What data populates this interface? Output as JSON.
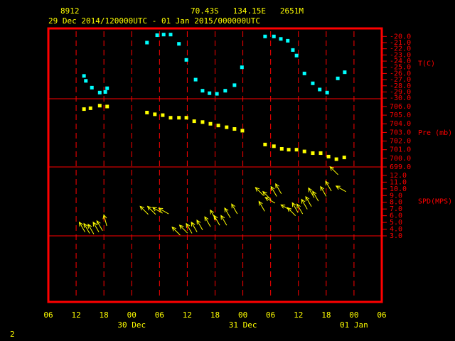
{
  "header": {
    "station": "8912",
    "location": "70.43S   134.15E   2651M",
    "period": "29 Dec 2014/120000UTC - 01 Jan 2015/000000UTC"
  },
  "page_number": "2",
  "x_axis": {
    "xlim": [
      0,
      72
    ],
    "xticks": [
      {
        "value": 0,
        "label": "06"
      },
      {
        "value": 6,
        "label": "12"
      },
      {
        "value": 12,
        "label": "18"
      },
      {
        "value": 18,
        "label": "00"
      },
      {
        "value": 24,
        "label": "06"
      },
      {
        "value": 30,
        "label": "12"
      },
      {
        "value": 36,
        "label": "18"
      },
      {
        "value": 42,
        "label": "00"
      },
      {
        "value": 48,
        "label": "06"
      },
      {
        "value": 54,
        "label": "12"
      },
      {
        "value": 60,
        "label": "18"
      },
      {
        "value": 66,
        "label": "00"
      },
      {
        "value": 72,
        "label": "06"
      }
    ],
    "date_labels": [
      {
        "value": 18,
        "label": "30 Dec"
      },
      {
        "value": 42,
        "label": "31 Dec"
      },
      {
        "value": 66,
        "label": "01 Jan"
      }
    ]
  },
  "chart_data": [
    {
      "type": "scatter",
      "axis_label": "T(C)",
      "color": "#00ffff",
      "ylim": [
        -30.1,
        -18.7
      ],
      "yticks": [
        {
          "value": -20,
          "label": "-20.0"
        },
        {
          "value": -21,
          "label": "-21.0"
        },
        {
          "value": -22,
          "label": "-22.0"
        },
        {
          "value": -23,
          "label": "-23.0"
        },
        {
          "value": -24,
          "label": "-24.0"
        },
        {
          "value": -25,
          "label": "-25.0"
        },
        {
          "value": -26,
          "label": "-26.0"
        },
        {
          "value": -27,
          "label": "-27.0"
        },
        {
          "value": -28,
          "label": "-28.0"
        },
        {
          "value": -29,
          "label": "-29.0"
        },
        {
          "value": -30,
          "label": "-30.0"
        }
      ],
      "x": [
        7.7,
        8.1,
        9.4,
        11.1,
        12.3,
        12.7,
        21.3,
        23.5,
        24.9,
        26.4,
        28.2,
        29.8,
        31.8,
        33.3,
        34.8,
        36.4,
        38.2,
        40.2,
        41.8,
        46.8,
        48.7,
        50.2,
        51.7,
        52.8,
        53.6,
        55.3,
        57.1,
        58.6,
        60.2,
        62.5,
        64.0
      ],
      "values": [
        -26.4,
        -27.2,
        -28.3,
        -29.1,
        -29.0,
        -28.4,
        -21.0,
        -19.8,
        -19.7,
        -19.7,
        -21.2,
        -23.8,
        -27.0,
        -28.8,
        -29.2,
        -29.3,
        -28.8,
        -27.9,
        -25.0,
        -20.0,
        -20.0,
        -20.4,
        -20.7,
        -22.2,
        -23.1,
        -26.0,
        -27.6,
        -28.6,
        -29.1,
        -26.8,
        -25.8
      ]
    },
    {
      "type": "scatter",
      "axis_label": "Pre (mb)",
      "color": "#ffff00",
      "ylim": [
        699,
        706.9
      ],
      "yticks": [
        {
          "value": 699,
          "label": "699.0"
        },
        {
          "value": 700,
          "label": "700.0"
        },
        {
          "value": 701,
          "label": "701.0"
        },
        {
          "value": 702,
          "label": "702.0"
        },
        {
          "value": 703,
          "label": "703.0"
        },
        {
          "value": 704,
          "label": "704.0"
        },
        {
          "value": 705,
          "label": "705.0"
        },
        {
          "value": 706,
          "label": "706.0"
        }
      ],
      "x": [
        7.7,
        9.1,
        11.1,
        12.7,
        21.3,
        23.0,
        24.7,
        26.4,
        28.2,
        29.8,
        31.5,
        33.3,
        35.0,
        36.7,
        38.5,
        40.2,
        41.9,
        46.8,
        48.7,
        50.4,
        51.9,
        53.6,
        55.3,
        57.1,
        58.8,
        60.5,
        62.2,
        63.9
      ],
      "values": [
        705.7,
        705.8,
        706.1,
        706.0,
        705.3,
        705.1,
        705.0,
        704.7,
        704.7,
        704.7,
        704.3,
        704.2,
        704.0,
        703.8,
        703.6,
        703.4,
        703.2,
        701.6,
        701.4,
        701.1,
        701.0,
        701.0,
        700.8,
        700.6,
        700.6,
        700.2,
        699.9,
        700.1
      ]
    },
    {
      "type": "wind",
      "axis_label": "SPD(MPS)",
      "color": "#ffff00",
      "ylim": [
        3,
        13.26
      ],
      "yticks": [
        {
          "value": 3,
          "label": "3.0"
        },
        {
          "value": 4,
          "label": "4.0"
        },
        {
          "value": 5,
          "label": "5.0"
        },
        {
          "value": 6,
          "label": "6.0"
        },
        {
          "value": 7,
          "label": "7.0"
        },
        {
          "value": 8,
          "label": "8.0"
        },
        {
          "value": 9,
          "label": "9.0"
        },
        {
          "value": 10,
          "label": "10.0"
        },
        {
          "value": 11,
          "label": "11.0"
        },
        {
          "value": 12,
          "label": "12.0"
        }
      ],
      "x": [
        7.3,
        8.3,
        9.2,
        10.3,
        11.1,
        12.3,
        20.7,
        22.3,
        23.6,
        24.9,
        27.6,
        29.2,
        30.4,
        31.5,
        32.7,
        34.4,
        35.6,
        36.4,
        37.9,
        38.7,
        40.2,
        45.6,
        46.1,
        47.2,
        47.9,
        48.7,
        49.7,
        51.3,
        52.5,
        53.3,
        54.3,
        55.3,
        56.2,
        56.8,
        57.7,
        59.4,
        60.5,
        61.7,
        63.2
      ],
      "values": [
        4.3,
        4.1,
        4.0,
        4.3,
        4.5,
        5.3,
        6.8,
        6.8,
        6.8,
        6.7,
        3.7,
        4.0,
        4.1,
        4.3,
        4.6,
        5.1,
        6.1,
        5.3,
        5.3,
        6.4,
        7.0,
        9.6,
        7.4,
        9.0,
        8.3,
        9.6,
        10.0,
        7.2,
        6.6,
        7.2,
        7.0,
        7.7,
        8.1,
        9.4,
        8.9,
        9.6,
        10.4,
        12.7,
        10.0
      ],
      "direction": [
        330,
        330,
        330,
        330,
        330,
        345,
        315,
        315,
        300,
        300,
        315,
        315,
        330,
        330,
        330,
        330,
        330,
        330,
        330,
        330,
        330,
        315,
        330,
        315,
        300,
        330,
        330,
        300,
        315,
        330,
        330,
        330,
        330,
        330,
        330,
        330,
        330,
        315,
        300
      ]
    }
  ]
}
